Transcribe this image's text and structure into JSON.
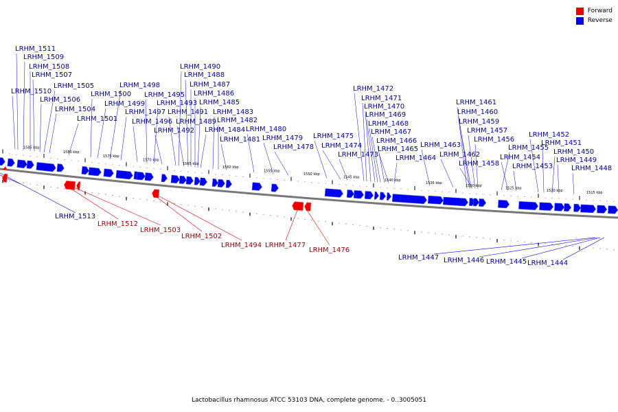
{
  "legend": {
    "forward_label": "Forward",
    "reverse_label": "Reverse",
    "forward_color": "#ee0000",
    "reverse_color": "#0000ee"
  },
  "caption": "Lactobacillus rhamnosus ATCC 53103 DNA, complete genome. - 0..3005051",
  "scale_unit": "kbp",
  "scale_labels": [
    "1585 kbp",
    "1580 kbp",
    "1575 kbp",
    "1570 kbp",
    "1565 kbp",
    "1560 kbp",
    "1555 kbp",
    "1550 kbp",
    "1545 kbp",
    "1540 kbp",
    "1535 kbp",
    "1530 kbp",
    "1525 kbp",
    "1520 kbp",
    "1515 kbp"
  ],
  "reverse_genes": [
    "LRHM_1511",
    "LRHM_1509",
    "LRHM_1508",
    "LRHM_1507",
    "LRHM_1510",
    "LRHM_1506",
    "LRHM_1505",
    "LRHM_1504",
    "LRHM_1501",
    "LRHM_1500",
    "LRHM_1499",
    "LRHM_1498",
    "LRHM_1497",
    "LRHM_1496",
    "LRHM_1495",
    "LRHM_1493",
    "LRHM_1492",
    "LRHM_1491",
    "LRHM_1490",
    "LRHM_1489",
    "LRHM_1488",
    "LRHM_1487",
    "LRHM_1486",
    "LRHM_1485",
    "LRHM_1484",
    "LRHM_1483",
    "LRHM_1482",
    "LRHM_1481",
    "LRHM_1480",
    "LRHM_1479",
    "LRHM_1478",
    "LRHM_1475",
    "LRHM_1474",
    "LRHM_1473",
    "LRHM_1472",
    "LRHM_1471",
    "LRHM_1470",
    "LRHM_1469",
    "LRHM_1468",
    "LRHM_1467",
    "LRHM_1466",
    "LRHM_1465",
    "LRHM_1464",
    "LRHM_1463",
    "LRHM_1462",
    "LRHM_1461",
    "LRHM_1460",
    "LRHM_1459",
    "LRHM_1458",
    "LRHM_1457",
    "LRHM_1456",
    "LRHM_1455",
    "LRHM_1454",
    "LRHM_1453",
    "LRHM_1452",
    "LRHM_1451",
    "LRHM_1450",
    "LRHM_1449",
    "LRHM_1448"
  ],
  "forward_genes": [
    "LRHM_1512",
    "LRHM_1503",
    "LRHM_1502",
    "LRHM_1494",
    "LRHM_1477",
    "LRHM_1476"
  ],
  "lower_reverse_genes": [
    "LRHM_1513",
    "LRHM_1447",
    "LRHM_1446",
    "LRHM_1445",
    "LRHM_1444"
  ]
}
